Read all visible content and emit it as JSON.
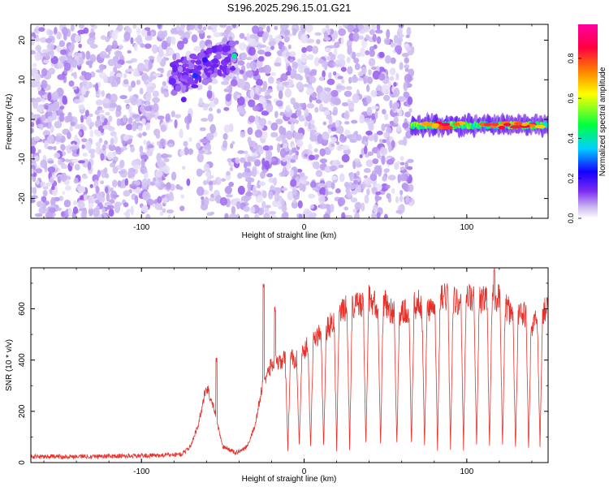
{
  "title": "S196.2025.296.15.01.G21",
  "chart_data": [
    {
      "type": "heatmap",
      "xlabel": "Height of straight line (km)",
      "ylabel": "Frequency (Hz)",
      "xlim": [
        -168,
        150
      ],
      "ylim": [
        -25,
        24
      ],
      "x_ticks": [
        -100,
        0,
        100
      ],
      "y_ticks": [
        -20,
        -10,
        0,
        10,
        20
      ],
      "colorbar": {
        "label": "Normalized spectral amplitude",
        "ticks": [
          "0.0",
          "0.2",
          "0.4",
          "0.6",
          "0.8"
        ],
        "range": [
          0,
          0.97
        ],
        "colors": [
          "#ffffff",
          "#c8b4f0",
          "#7d2bf0",
          "#1400ff",
          "#00d0ff",
          "#00ff40",
          "#ffff00",
          "#ff8000",
          "#ff0040",
          "#ff00a0"
        ]
      },
      "signal_ridge": {
        "segments": [
          {
            "x": [
              -82,
              -42
            ],
            "y": [
              10,
              16
            ]
          },
          {
            "x": [
              66,
              150
            ],
            "y": [
              -1.5,
              -1.5
            ]
          }
        ]
      },
      "noise_region_x": [
        -168,
        66
      ]
    },
    {
      "type": "line",
      "xlabel": "Height of straight line (km)",
      "ylabel": "SNR (10 * v/v)",
      "xlim": [
        -168,
        150
      ],
      "ylim": [
        0,
        760
      ],
      "x_ticks": [
        -100,
        0,
        100
      ],
      "y_ticks": [
        0,
        200,
        400,
        600
      ],
      "series": [
        {
          "color": "#e8302a",
          "envelope": [
            [
              -168,
              20
            ],
            [
              -120,
              22
            ],
            [
              -90,
              25
            ],
            [
              -75,
              30
            ],
            [
              -70,
              60
            ],
            [
              -65,
              150
            ],
            [
              -60,
              300
            ],
            [
              -55,
              200
            ],
            [
              -50,
              60
            ],
            [
              -42,
              35
            ],
            [
              -35,
              60
            ],
            [
              -30,
              150
            ],
            [
              -25,
              320
            ],
            [
              -20,
              380
            ],
            [
              -15,
              390
            ],
            [
              -10,
              410
            ],
            [
              -5,
              400
            ],
            [
              0,
              440
            ],
            [
              5,
              470
            ],
            [
              10,
              500
            ],
            [
              15,
              530
            ],
            [
              20,
              570
            ],
            [
              25,
              600
            ],
            [
              30,
              610
            ],
            [
              35,
              620
            ],
            [
              40,
              640
            ],
            [
              45,
              610
            ],
            [
              50,
              620
            ],
            [
              55,
              580
            ],
            [
              60,
              580
            ],
            [
              65,
              600
            ],
            [
              70,
              620
            ],
            [
              75,
              610
            ],
            [
              80,
              600
            ],
            [
              85,
              640
            ],
            [
              90,
              650
            ],
            [
              95,
              620
            ],
            [
              100,
              650
            ],
            [
              105,
              630
            ],
            [
              110,
              640
            ],
            [
              115,
              650
            ],
            [
              120,
              640
            ],
            [
              125,
              600
            ],
            [
              130,
              560
            ],
            [
              135,
              580
            ],
            [
              140,
              540
            ],
            [
              145,
              560
            ],
            [
              150,
              630
            ]
          ],
          "spikes": [
            {
              "x": -54,
              "y": 410
            },
            {
              "x": -25,
              "y": 700
            },
            {
              "x": -18,
              "y": 610
            },
            {
              "x": 117,
              "y": 760
            }
          ],
          "dropouts": [
            -10,
            -3,
            4,
            12,
            20,
            28,
            38,
            47,
            57,
            66,
            74,
            82,
            90,
            98,
            106,
            114,
            122,
            130,
            138,
            145
          ]
        }
      ]
    }
  ]
}
